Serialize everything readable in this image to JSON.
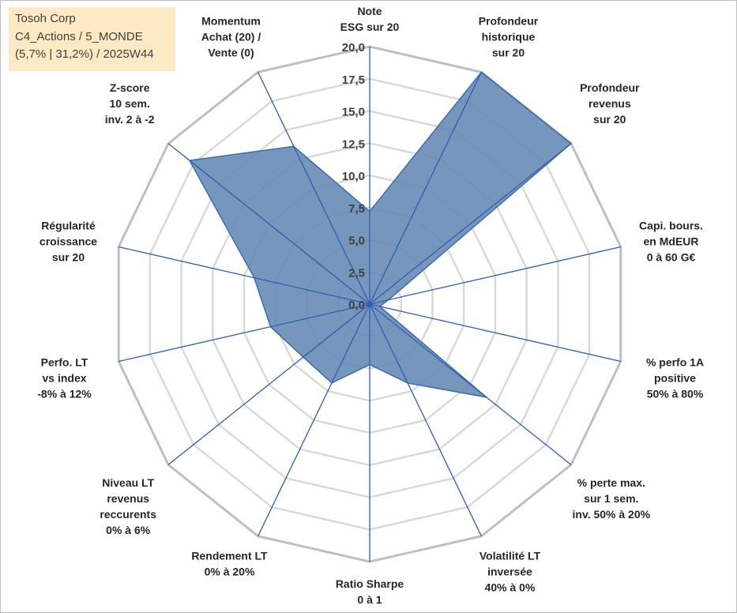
{
  "info": {
    "company": "Tosoh Corp",
    "portfolio": "C4_Actions / 5_MONDE",
    "stats": "(5,7% | 31,2%) / 2025W44"
  },
  "colors": {
    "fill": "#6388b5",
    "stroke": "#3f6ea5",
    "spoke": "#2f5fae",
    "grid_outer": "#bfbfbf",
    "grid_inner": "#d9d9d9",
    "info_bg": "#fde9c4"
  },
  "chart_data": {
    "type": "radar",
    "rmax": 20,
    "ticks": [
      "0,0",
      "2,5",
      "5,0",
      "7,5",
      "10,0",
      "12,5",
      "15,0",
      "17,5",
      "20,0"
    ],
    "tick_values": [
      0,
      2.5,
      5,
      7.5,
      10,
      12.5,
      15,
      17.5,
      20
    ],
    "axes": [
      {
        "label": [
          "Note",
          "ESG sur 20"
        ],
        "value": 7.2
      },
      {
        "label": [
          "Profondeur",
          "historique",
          "sur 20"
        ],
        "value": 20
      },
      {
        "label": [
          "Profondeur",
          "revenus",
          "sur 20"
        ],
        "value": 20
      },
      {
        "label": [
          "Capi. bours.",
          "en MdEUR",
          "0 à 60 G€"
        ],
        "value": 1.5
      },
      {
        "label": [
          "% perfo 1A",
          "positive",
          "50% à 80%"
        ],
        "value": 0.8
      },
      {
        "label": [
          "% perte max.",
          "sur 1 sem.",
          "inv. 50% à 20%"
        ],
        "value": 11.6
      },
      {
        "label": [
          "Volatilité LT",
          "inversée",
          "40% à 0%"
        ],
        "value": 6.8
      },
      {
        "label": [
          "Ratio Sharpe",
          "0 à 1"
        ],
        "value": 4.7
      },
      {
        "label": [
          "Rendement LT",
          "0% à 20%"
        ],
        "value": 6.8
      },
      {
        "label": [
          "Niveau LT",
          "revenus",
          "reccurents",
          "0% à 6%"
        ],
        "value": 6.6
      },
      {
        "label": [
          "Perfo. LT",
          "vs index",
          "-8% à 12%"
        ],
        "value": 7.9
      },
      {
        "label": [
          "Régularité",
          "croissance",
          "sur 20"
        ],
        "value": 9.2
      },
      {
        "label": [
          "Z-score",
          "10 sem.",
          "inv. 2 à -2"
        ],
        "value": 17.9
      },
      {
        "label": [
          "Momentum",
          "Achat (20) /",
          "Vente (0)"
        ],
        "value": 13.6
      }
    ]
  }
}
